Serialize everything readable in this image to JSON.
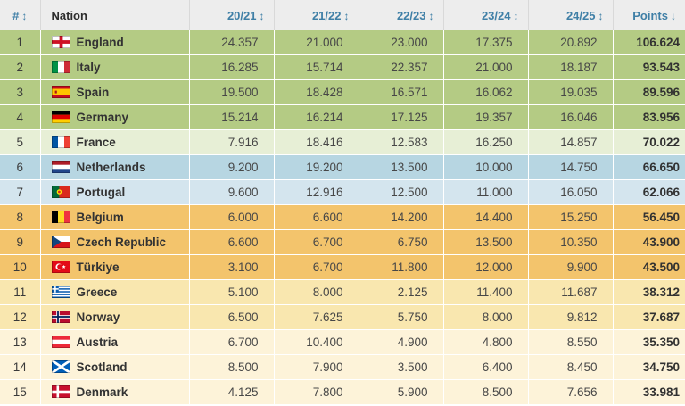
{
  "table": {
    "header": {
      "rank_label": "#",
      "nation_label": "Nation",
      "seasons": [
        "20/21",
        "21/22",
        "22/23",
        "23/24",
        "24/25"
      ],
      "points_label": "Points",
      "sort_both_icon": "↕",
      "sort_desc_icon": "↓"
    },
    "colors": {
      "link": "#3f7fa6",
      "header_bg": "#ededed",
      "text": "#3d3d3d"
    },
    "bands": {
      "green": "#b4cb84",
      "palegreen": "#e7efd6",
      "blue": "#b7d6e2",
      "lightblue": "#d4e5ee",
      "orange": "#f3c46c",
      "yellow": "#f9e7af",
      "cream": "#fdf3d9"
    },
    "rows": [
      {
        "rank": "1",
        "nation": "England",
        "flag": "england",
        "band": "green",
        "values": [
          "24.357",
          "21.000",
          "23.000",
          "17.375",
          "20.892"
        ],
        "points": "106.624"
      },
      {
        "rank": "2",
        "nation": "Italy",
        "flag": "italy",
        "band": "green",
        "values": [
          "16.285",
          "15.714",
          "22.357",
          "21.000",
          "18.187"
        ],
        "points": "93.543"
      },
      {
        "rank": "3",
        "nation": "Spain",
        "flag": "spain",
        "band": "green",
        "values": [
          "19.500",
          "18.428",
          "16.571",
          "16.062",
          "19.035"
        ],
        "points": "89.596"
      },
      {
        "rank": "4",
        "nation": "Germany",
        "flag": "germany",
        "band": "green",
        "values": [
          "15.214",
          "16.214",
          "17.125",
          "19.357",
          "16.046"
        ],
        "points": "83.956"
      },
      {
        "rank": "5",
        "nation": "France",
        "flag": "france",
        "band": "palegreen",
        "values": [
          "7.916",
          "18.416",
          "12.583",
          "16.250",
          "14.857"
        ],
        "points": "70.022"
      },
      {
        "rank": "6",
        "nation": "Netherlands",
        "flag": "netherlands",
        "band": "blue",
        "values": [
          "9.200",
          "19.200",
          "13.500",
          "10.000",
          "14.750"
        ],
        "points": "66.650"
      },
      {
        "rank": "7",
        "nation": "Portugal",
        "flag": "portugal",
        "band": "lightblue",
        "values": [
          "9.600",
          "12.916",
          "12.500",
          "11.000",
          "16.050"
        ],
        "points": "62.066"
      },
      {
        "rank": "8",
        "nation": "Belgium",
        "flag": "belgium",
        "band": "orange",
        "values": [
          "6.000",
          "6.600",
          "14.200",
          "14.400",
          "15.250"
        ],
        "points": "56.450"
      },
      {
        "rank": "9",
        "nation": "Czech Republic",
        "flag": "czech",
        "band": "orange",
        "values": [
          "6.600",
          "6.700",
          "6.750",
          "13.500",
          "10.350"
        ],
        "points": "43.900"
      },
      {
        "rank": "10",
        "nation": "Türkiye",
        "flag": "turkiye",
        "band": "orange",
        "values": [
          "3.100",
          "6.700",
          "11.800",
          "12.000",
          "9.900"
        ],
        "points": "43.500"
      },
      {
        "rank": "11",
        "nation": "Greece",
        "flag": "greece",
        "band": "yellow",
        "values": [
          "5.100",
          "8.000",
          "2.125",
          "11.400",
          "11.687"
        ],
        "points": "38.312"
      },
      {
        "rank": "12",
        "nation": "Norway",
        "flag": "norway",
        "band": "yellow",
        "values": [
          "6.500",
          "7.625",
          "5.750",
          "8.000",
          "9.812"
        ],
        "points": "37.687"
      },
      {
        "rank": "13",
        "nation": "Austria",
        "flag": "austria",
        "band": "cream",
        "values": [
          "6.700",
          "10.400",
          "4.900",
          "4.800",
          "8.550"
        ],
        "points": "35.350"
      },
      {
        "rank": "14",
        "nation": "Scotland",
        "flag": "scotland",
        "band": "cream",
        "values": [
          "8.500",
          "7.900",
          "3.500",
          "6.400",
          "8.450"
        ],
        "points": "34.750"
      },
      {
        "rank": "15",
        "nation": "Denmark",
        "flag": "denmark",
        "band": "cream",
        "values": [
          "4.125",
          "7.800",
          "5.900",
          "8.500",
          "7.656"
        ],
        "points": "33.981"
      }
    ]
  }
}
